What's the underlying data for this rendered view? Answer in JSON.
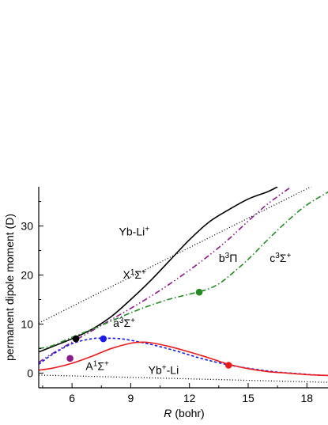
{
  "chart_data": {
    "type": "line",
    "title": "",
    "xlabel": "R",
    "xlabel_unit": "(bohr)",
    "ylabel": "permanent dipole moment (D)",
    "xlim": [
      4.3,
      19.2
    ],
    "ylim": [
      -3,
      38
    ],
    "xticks": [
      6,
      9,
      12,
      15,
      18
    ],
    "yticks": [
      0,
      10,
      20,
      30
    ],
    "grid": false,
    "legend": "none",
    "series": [
      {
        "name": "Yb-Li+",
        "color": "#000000",
        "dash": "1,2.5",
        "width": 1.3,
        "x": [
          4.3,
          19.2
        ],
        "y": [
          10.2,
          40.0
        ]
      },
      {
        "name": "Yb+-Li",
        "color": "#000000",
        "dash": "1,2.5",
        "width": 1.3,
        "x": [
          4.3,
          19.2
        ],
        "y": [
          -0.4,
          -1.9
        ]
      },
      {
        "name": "X1Σ+",
        "color": "#000000",
        "dash": "",
        "width": 1.6,
        "x": [
          4.3,
          5,
          6,
          7,
          8,
          9,
          10,
          11,
          12,
          13,
          14,
          15,
          16,
          16.5
        ],
        "y": [
          4.3,
          5.4,
          7.0,
          8.9,
          11.5,
          15.0,
          18.8,
          23.0,
          27.2,
          30.8,
          33.3,
          35.5,
          37.0,
          38.0
        ]
      },
      {
        "name": "b3Π",
        "color": "#8b1a8b",
        "dash": "7,3,1.5,3,1.5,3",
        "width": 1.6,
        "x": [
          4.3,
          5,
          6,
          7,
          8,
          9,
          10,
          11,
          12,
          13,
          14,
          15,
          16,
          17.2
        ],
        "y": [
          2.2,
          4.0,
          6.3,
          8.6,
          10.9,
          13.2,
          15.6,
          18.2,
          21.0,
          24.0,
          27.3,
          31.0,
          34.5,
          38.0
        ]
      },
      {
        "name": "c3Σ+",
        "color": "#228b22",
        "dash": "7,3,1.5,3",
        "width": 1.6,
        "x": [
          4.3,
          5,
          6,
          7,
          8,
          9,
          10,
          11,
          12,
          12.5,
          13,
          13.5,
          14,
          15,
          16,
          17,
          18,
          19.2
        ],
        "y": [
          5.0,
          5.6,
          7.3,
          8.9,
          10.6,
          12.3,
          13.8,
          15.1,
          16.1,
          16.6,
          17.2,
          18.2,
          19.7,
          23.2,
          27.2,
          31.0,
          34.3,
          37.2
        ]
      },
      {
        "name": "a3Σ+",
        "color": "#1a1aee",
        "dash": "3.5,2.5",
        "width": 1.6,
        "x": [
          4.3,
          5,
          6,
          7,
          7.6,
          8.5,
          9.5,
          10.5,
          11.5,
          12.5,
          13.5,
          14.5,
          15.5,
          16.5,
          17.5,
          18.5,
          19.2
        ],
        "y": [
          1.8,
          3.8,
          6.0,
          7.0,
          7.1,
          7.0,
          6.3,
          5.4,
          4.3,
          3.1,
          2.1,
          1.3,
          0.7,
          0.2,
          -0.1,
          -0.4,
          -0.5
        ]
      },
      {
        "name": "A1Σ+",
        "color": "#ee1a1a",
        "dash": "",
        "width": 1.6,
        "x": [
          4.3,
          5,
          6,
          7,
          8,
          9,
          9.5,
          10,
          11,
          12,
          13,
          14,
          15,
          16,
          17,
          18,
          19.2
        ],
        "y": [
          0.6,
          1.0,
          2.0,
          3.4,
          5.0,
          6.1,
          6.3,
          6.2,
          5.4,
          4.3,
          3.1,
          1.8,
          0.9,
          0.3,
          0.0,
          -0.3,
          -0.5
        ]
      }
    ],
    "markers": [
      {
        "x": 6.2,
        "y": 7.0,
        "color": "#000000",
        "series": "X1Σ+"
      },
      {
        "x": 7.6,
        "y": 7.0,
        "color": "#1a1aee",
        "series": "a3Σ+"
      },
      {
        "x": 5.9,
        "y": 3.0,
        "color": "#8b1a8b",
        "series": "b3Π"
      },
      {
        "x": 12.5,
        "y": 16.5,
        "color": "#228b22",
        "series": "c3Σ+"
      },
      {
        "x": 14.0,
        "y": 1.6,
        "color": "#ee1a1a",
        "series": "A1Σ+"
      }
    ],
    "annotations": [
      {
        "x": 8.4,
        "y": 28.1,
        "parts": [
          [
            "Yb-Li",
            ""
          ],
          [
            "+",
            "sup"
          ]
        ]
      },
      {
        "x": 8.6,
        "y": 19.3,
        "parts": [
          [
            "X",
            ""
          ],
          [
            "1",
            "sup"
          ],
          [
            "Σ",
            ""
          ],
          [
            "+",
            "sup"
          ]
        ]
      },
      {
        "x": 13.5,
        "y": 22.7,
        "parts": [
          [
            "b",
            ""
          ],
          [
            "3",
            "sup"
          ],
          [
            "Π",
            ""
          ]
        ]
      },
      {
        "x": 16.1,
        "y": 22.7,
        "parts": [
          [
            "c",
            ""
          ],
          [
            "3",
            "sup"
          ],
          [
            "Σ",
            ""
          ],
          [
            "+",
            "sup"
          ]
        ]
      },
      {
        "x": 8.1,
        "y": 9.4,
        "parts": [
          [
            "a",
            ""
          ],
          [
            "3",
            "sup"
          ],
          [
            "Σ",
            ""
          ],
          [
            "+",
            "sup"
          ]
        ]
      },
      {
        "x": 6.7,
        "y": 0.6,
        "parts": [
          [
            "A",
            ""
          ],
          [
            "1",
            "sup"
          ],
          [
            "Σ",
            ""
          ],
          [
            "+",
            "sup"
          ]
        ]
      },
      {
        "x": 9.9,
        "y": -0.2,
        "parts": [
          [
            "Yb",
            ""
          ],
          [
            "+",
            "sup"
          ],
          [
            "-Li",
            ""
          ]
        ]
      }
    ]
  }
}
